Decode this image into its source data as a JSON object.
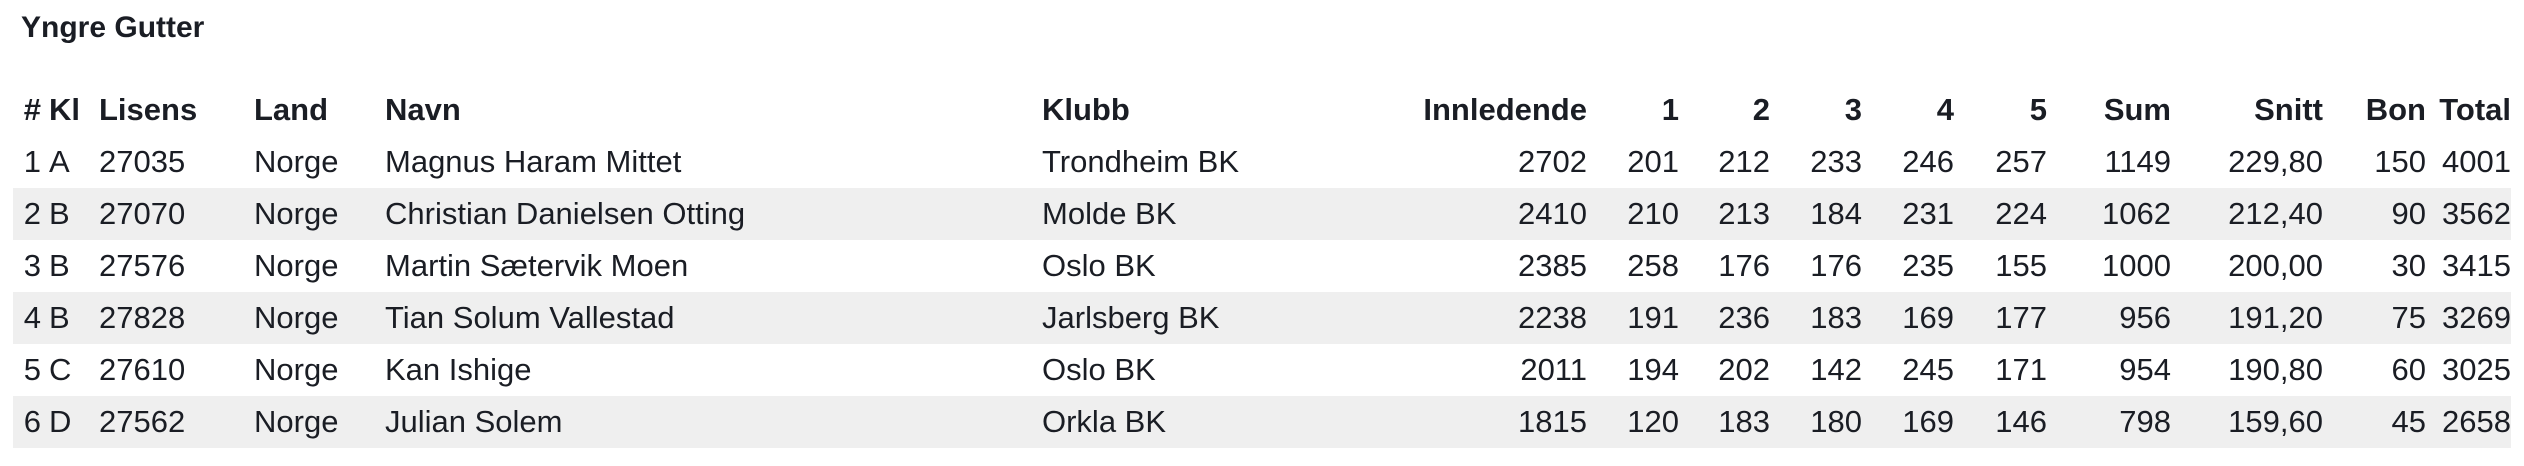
{
  "title": "Yngre Gutter",
  "columns": {
    "rank": "#",
    "kl": "Kl",
    "lisens": "Lisens",
    "land": "Land",
    "navn": "Navn",
    "klubb": "Klubb",
    "innledende": "Innledende",
    "g1": "1",
    "g2": "2",
    "g3": "3",
    "g4": "4",
    "g5": "5",
    "sum": "Sum",
    "snitt": "Snitt",
    "bon": "Bon",
    "total": "Total"
  },
  "rows": [
    {
      "rank": "1",
      "kl": "A",
      "lisens": "27035",
      "land": "Norge",
      "navn": "Magnus Haram Mittet",
      "klubb": "Trondheim BK",
      "innledende": "2702",
      "g1": "201",
      "g2": "212",
      "g3": "233",
      "g4": "246",
      "g5": "257",
      "sum": "1149",
      "snitt": "229,80",
      "bon": "150",
      "total": "4001"
    },
    {
      "rank": "2",
      "kl": "B",
      "lisens": "27070",
      "land": "Norge",
      "navn": "Christian Danielsen Otting",
      "klubb": "Molde BK",
      "innledende": "2410",
      "g1": "210",
      "g2": "213",
      "g3": "184",
      "g4": "231",
      "g5": "224",
      "sum": "1062",
      "snitt": "212,40",
      "bon": "90",
      "total": "3562"
    },
    {
      "rank": "3",
      "kl": "B",
      "lisens": "27576",
      "land": "Norge",
      "navn": "Martin Sætervik Moen",
      "klubb": "Oslo BK",
      "innledende": "2385",
      "g1": "258",
      "g2": "176",
      "g3": "176",
      "g4": "235",
      "g5": "155",
      "sum": "1000",
      "snitt": "200,00",
      "bon": "30",
      "total": "3415"
    },
    {
      "rank": "4",
      "kl": "B",
      "lisens": "27828",
      "land": "Norge",
      "navn": "Tian Solum Vallestad",
      "klubb": "Jarlsberg BK",
      "innledende": "2238",
      "g1": "191",
      "g2": "236",
      "g3": "183",
      "g4": "169",
      "g5": "177",
      "sum": "956",
      "snitt": "191,20",
      "bon": "75",
      "total": "3269"
    },
    {
      "rank": "5",
      "kl": "C",
      "lisens": "27610",
      "land": "Norge",
      "navn": "Kan Ishige",
      "klubb": "Oslo BK",
      "innledende": "2011",
      "g1": "194",
      "g2": "202",
      "g3": "142",
      "g4": "245",
      "g5": "171",
      "sum": "954",
      "snitt": "190,80",
      "bon": "60",
      "total": "3025"
    },
    {
      "rank": "6",
      "kl": "D",
      "lisens": "27562",
      "land": "Norge",
      "navn": "Julian Solem",
      "klubb": "Orkla BK",
      "innledende": "1815",
      "g1": "120",
      "g2": "183",
      "g3": "180",
      "g4": "169",
      "g5": "146",
      "sum": "798",
      "snitt": "159,60",
      "bon": "45",
      "total": "2658"
    }
  ]
}
